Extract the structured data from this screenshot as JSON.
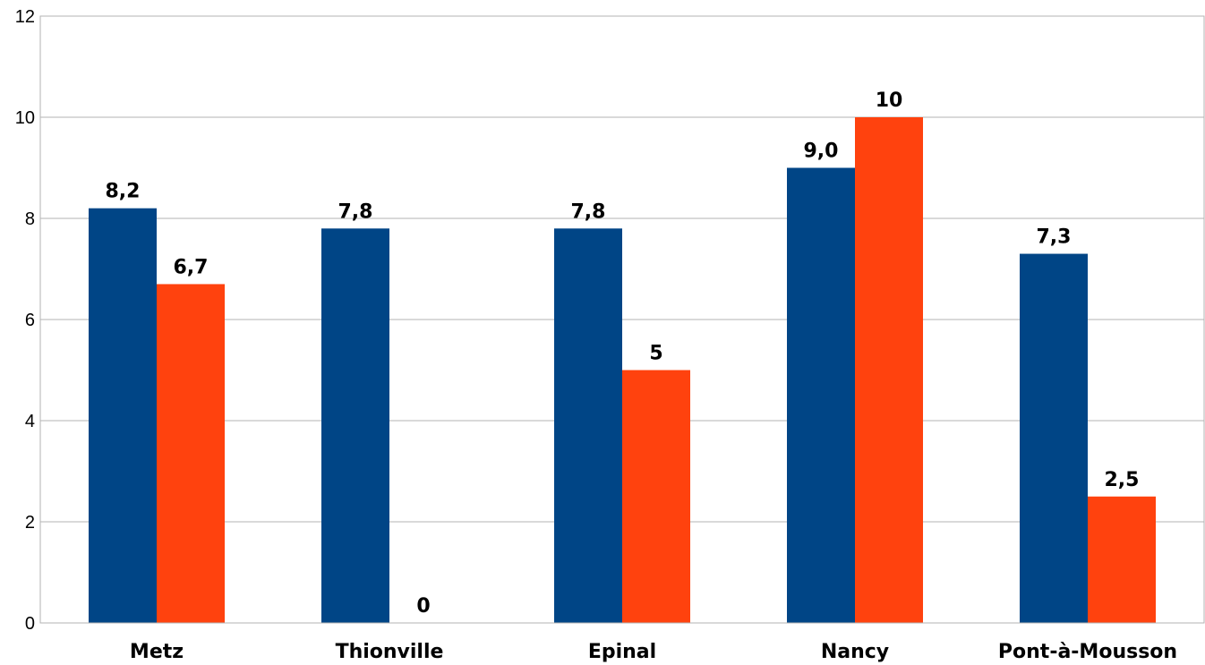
{
  "chart_data": {
    "type": "bar",
    "categories": [
      "Metz",
      "Thionville",
      "Epinal",
      "Nancy",
      "Pont-à-Mousson"
    ],
    "series": [
      {
        "values": [
          8.2,
          7.8,
          7.8,
          9.0,
          7.3
        ],
        "labels": [
          "8,2",
          "7,8",
          "7,8",
          "9,0",
          "7,3"
        ],
        "color": "#004586"
      },
      {
        "values": [
          6.7,
          0,
          5,
          10,
          2.5
        ],
        "labels": [
          "6,7",
          "0",
          "5",
          "10",
          "2,5"
        ],
        "color": "#ff420e"
      }
    ],
    "yticks": [
      "0",
      "2",
      "4",
      "6",
      "8",
      "10",
      "12"
    ],
    "ylim": [
      0,
      12
    ],
    "grid": true,
    "legend": "none"
  }
}
